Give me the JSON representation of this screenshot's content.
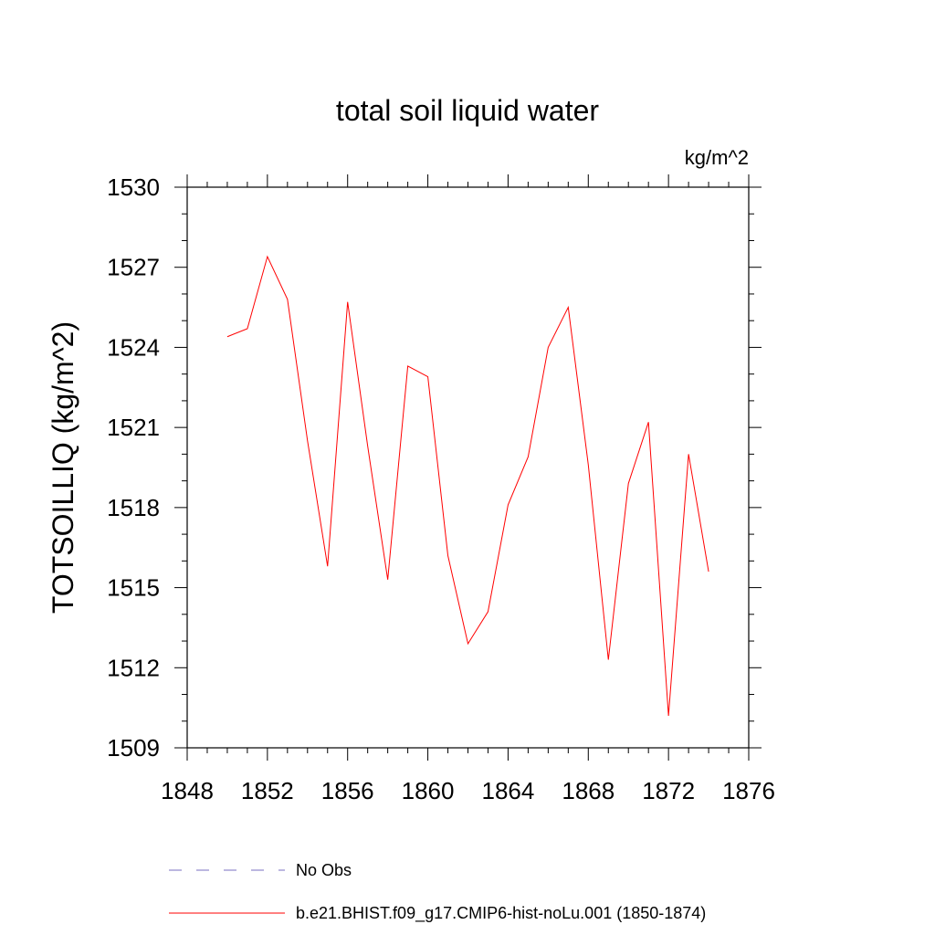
{
  "chart_data": {
    "type": "line",
    "title": "total soil liquid water",
    "units_label": "kg/m^2",
    "ylabel": "TOTSOILLIQ  (kg/m^2)",
    "xlabel": "",
    "xlim": [
      1848,
      1876
    ],
    "ylim": [
      1509,
      1530
    ],
    "x_ticks": [
      1848,
      1852,
      1856,
      1860,
      1864,
      1868,
      1872,
      1876
    ],
    "y_ticks": [
      1509,
      1512,
      1515,
      1518,
      1521,
      1524,
      1527,
      1530
    ],
    "x_tick_labels": [
      "1848",
      "1852",
      "1856",
      "1860",
      "1864",
      "1868",
      "1872",
      "1876"
    ],
    "y_tick_labels": [
      "1509",
      "1512",
      "1515",
      "1518",
      "1521",
      "1524",
      "1527",
      "1530"
    ],
    "grid": false,
    "legend_position": "bottom",
    "series": [
      {
        "name": "b.e21.BHIST.f09_g17.CMIP6-hist-noLu.001 (1850-1874)",
        "color": "#ff0000",
        "style": "solid",
        "x": [
          1850,
          1851,
          1852,
          1853,
          1854,
          1855,
          1856,
          1857,
          1858,
          1859,
          1860,
          1861,
          1862,
          1863,
          1864,
          1865,
          1866,
          1867,
          1868,
          1869,
          1870,
          1871,
          1872,
          1873,
          1874
        ],
        "y": [
          1524.4,
          1524.7,
          1527.4,
          1525.8,
          1520.5,
          1515.8,
          1525.7,
          1520.3,
          1515.3,
          1523.3,
          1522.9,
          1516.2,
          1512.9,
          1514.1,
          1518.1,
          1519.9,
          1524.0,
          1525.5,
          1519.6,
          1512.3,
          1518.9,
          1521.2,
          1510.2,
          1520.0,
          1515.6
        ]
      }
    ],
    "legend_entries": [
      {
        "label": "No Obs",
        "color": "#7a6fc0",
        "style": "dashed"
      },
      {
        "label": "b.e21.BHIST.f09_g17.CMIP6-hist-noLu.001 (1850-1874)",
        "color": "#ff0000",
        "style": "solid"
      }
    ]
  }
}
